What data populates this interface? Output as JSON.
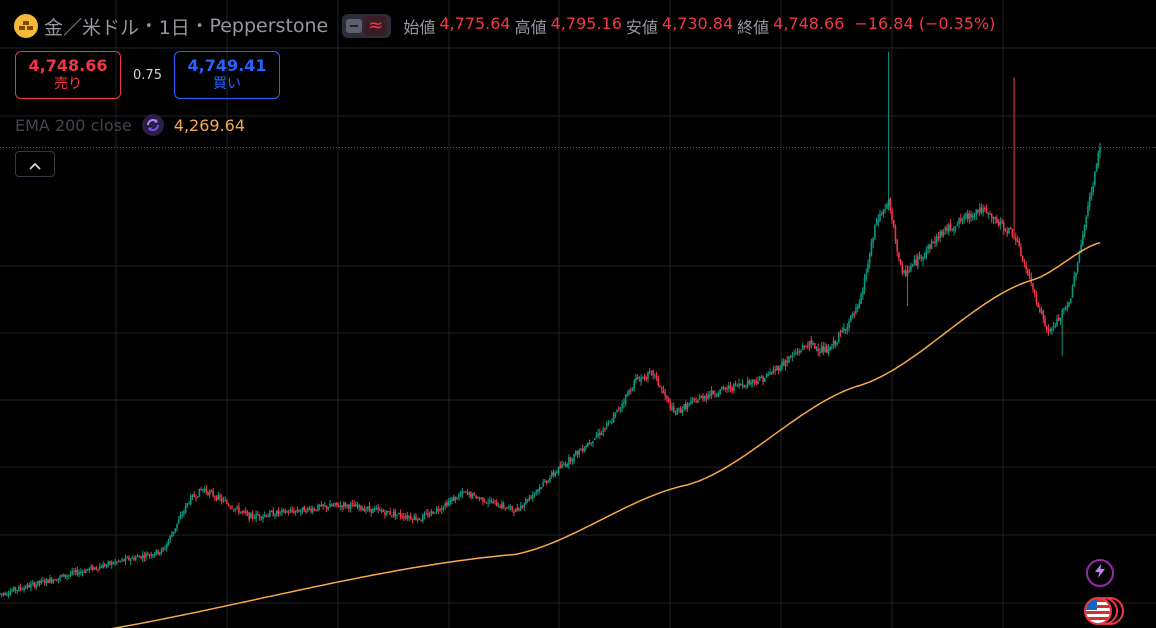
{
  "header": {
    "symbol": "金／米ドル",
    "interval": "1日",
    "broker": "Pepperstone",
    "toggle_glyph": "≈",
    "open_label": "始値",
    "open": "4,775.64",
    "high_label": "高値",
    "high": "4,795.16",
    "low_label": "安値",
    "low": "4,730.84",
    "close_label": "終値",
    "close": "4,748.66",
    "change": "−16.84 (−0.35%)",
    "change_color": "#f23645"
  },
  "trade": {
    "sell_price": "4,748.66",
    "sell_label": "売り",
    "spread": "0.75",
    "buy_price": "4,749.41",
    "buy_label": "買い"
  },
  "indicator": {
    "name": "EMA 200 close",
    "value": "4,269.64",
    "color": "#f7a94b",
    "icon": "cycle-icon"
  },
  "colors": {
    "up": "#089981",
    "down": "#f23645",
    "ema": "#f7a94b",
    "background": "#000000"
  },
  "icons": {
    "lightning": "lightning-icon",
    "flag": "us-flag-icon",
    "collapse": "chevron-up-icon",
    "logo": "gold-bars-icon"
  },
  "chart_data": {
    "type": "candlestick",
    "symbol": "XAUUSD",
    "timeframe": "1D",
    "ylim": [
      2450,
      5250
    ],
    "current_price": 4748.66,
    "grid": true,
    "key_points": [
      {
        "t": 0,
        "price": 2500
      },
      {
        "t": 45,
        "price": 2610
      },
      {
        "t": 95,
        "price": 2720
      },
      {
        "t": 110,
        "price": 2970
      },
      {
        "t": 118,
        "price": 3030
      },
      {
        "t": 145,
        "price": 2890
      },
      {
        "t": 200,
        "price": 2950
      },
      {
        "t": 245,
        "price": 2880
      },
      {
        "t": 270,
        "price": 3010
      },
      {
        "t": 300,
        "price": 2920
      },
      {
        "t": 320,
        "price": 3090
      },
      {
        "t": 355,
        "price": 3360
      },
      {
        "t": 370,
        "price": 3580
      },
      {
        "t": 380,
        "price": 3610
      },
      {
        "t": 392,
        "price": 3410
      },
      {
        "t": 410,
        "price": 3500
      },
      {
        "t": 425,
        "price": 3540
      },
      {
        "t": 445,
        "price": 3590
      },
      {
        "t": 470,
        "price": 3760
      },
      {
        "t": 482,
        "price": 3720
      },
      {
        "t": 500,
        "price": 3950
      },
      {
        "t": 510,
        "price": 4380
      },
      {
        "t": 517,
        "price": 4470
      },
      {
        "t": 525,
        "price": 4100
      },
      {
        "t": 548,
        "price": 4320
      },
      {
        "t": 570,
        "price": 4440
      },
      {
        "t": 590,
        "price": 4310
      },
      {
        "t": 610,
        "price": 3810
      },
      {
        "t": 622,
        "price": 3960
      },
      {
        "t": 640,
        "price": 4748
      }
    ],
    "ema200": [
      {
        "t": 0,
        "value": 2250
      },
      {
        "t": 300,
        "value": 2700
      },
      {
        "t": 400,
        "value": 3050
      },
      {
        "t": 500,
        "value": 3550
      },
      {
        "t": 600,
        "value": 4080
      },
      {
        "t": 640,
        "value": 4269.64
      }
    ]
  }
}
